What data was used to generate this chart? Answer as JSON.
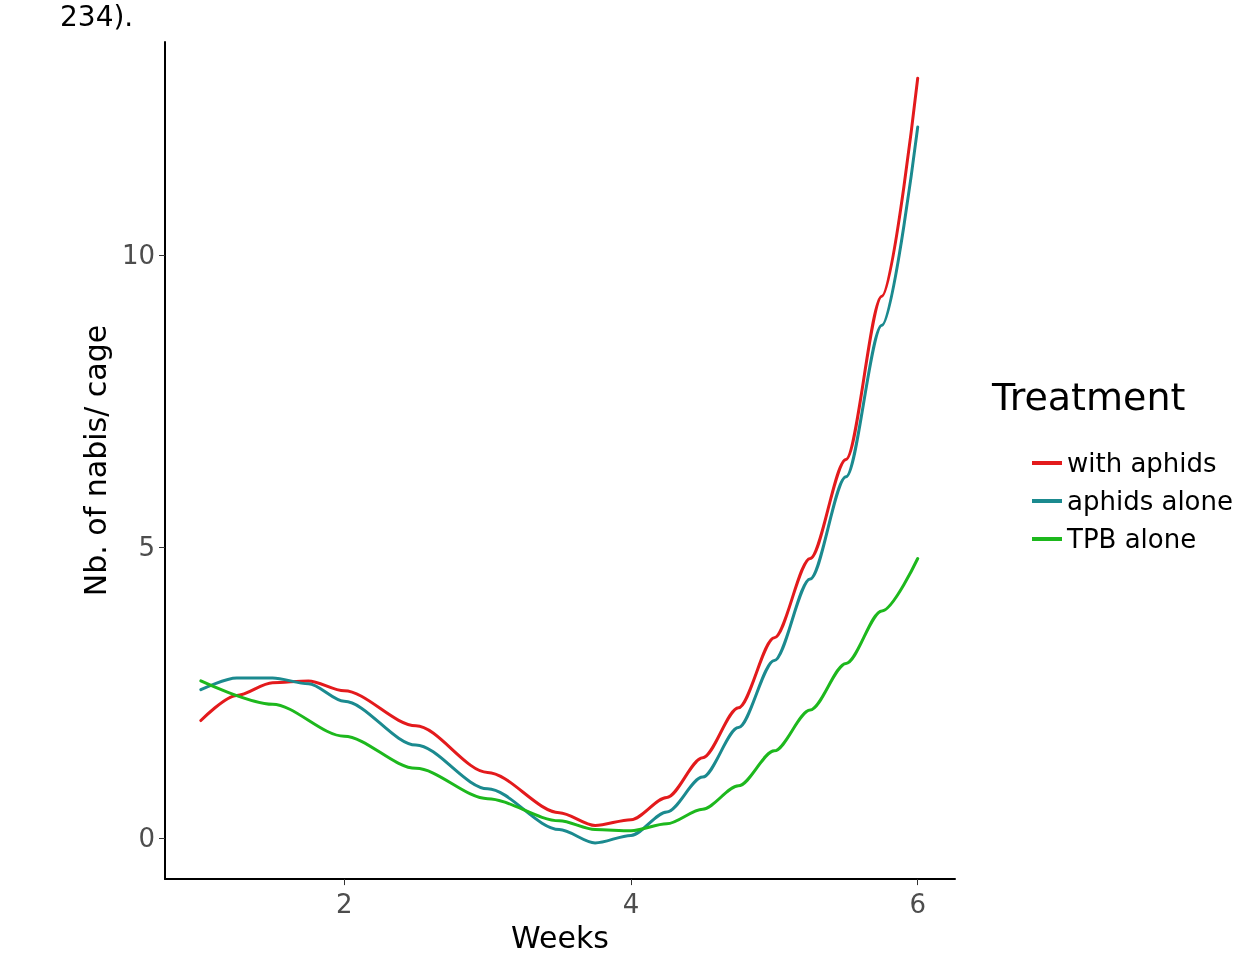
{
  "chart_data": {
    "type": "line",
    "xlabel": "Weeks",
    "ylabel": "Nb. of nabis/ cage",
    "legend_title": "Treatment",
    "annotations": [
      "234)."
    ],
    "xlim": [
      0.75,
      6.26
    ],
    "xticks": [
      2,
      4,
      6
    ],
    "ylim": [
      -0.7,
      13.66
    ],
    "yticks": [
      0,
      5,
      10
    ],
    "grid": false,
    "legend": "right",
    "marker": "none",
    "line_style": "solid",
    "series": [
      {
        "name": "with aphids",
        "color": "#e31a1c",
        "x": [
          1,
          1.25,
          1.5,
          1.75,
          2,
          2.5,
          3,
          3.5,
          3.75,
          4,
          4.25,
          4.5,
          4.75,
          5,
          5.25,
          5.5,
          5.75,
          6
        ],
        "values": [
          2.02,
          2.45,
          2.67,
          2.7,
          2.53,
          1.93,
          1.13,
          0.44,
          0.22,
          0.32,
          0.7,
          1.38,
          2.24,
          3.44,
          4.8,
          6.5,
          9.3,
          13.04
        ]
      },
      {
        "name": "aphids alone",
        "color": "#1b8a8f",
        "x": [
          1,
          1.25,
          1.5,
          1.75,
          2,
          2.5,
          3,
          3.5,
          3.75,
          4,
          4.25,
          4.5,
          4.75,
          5,
          5.25,
          5.5,
          5.75,
          6
        ],
        "values": [
          2.55,
          2.75,
          2.75,
          2.65,
          2.35,
          1.6,
          0.85,
          0.15,
          -0.08,
          0.05,
          0.45,
          1.05,
          1.9,
          3.05,
          4.45,
          6.2,
          8.8,
          12.2
        ]
      },
      {
        "name": "TPB alone",
        "color": "#1db81d",
        "x": [
          1,
          1.5,
          2,
          2.5,
          3,
          3.5,
          3.75,
          4,
          4.25,
          4.5,
          4.75,
          5,
          5.25,
          5.5,
          5.75,
          6
        ],
        "values": [
          2.7,
          2.3,
          1.75,
          1.2,
          0.68,
          0.3,
          0.15,
          0.13,
          0.25,
          0.5,
          0.9,
          1.5,
          2.2,
          3.0,
          3.9,
          4.8
        ]
      }
    ]
  }
}
